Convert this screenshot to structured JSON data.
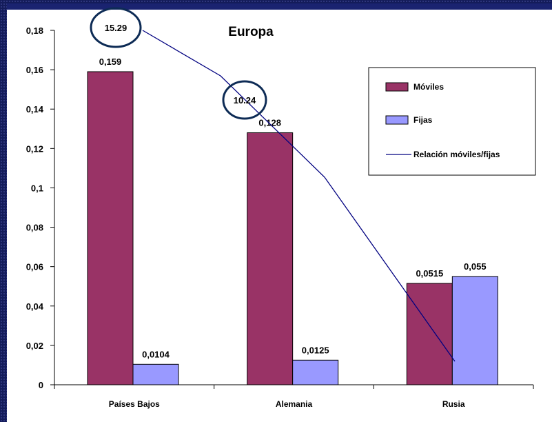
{
  "chart_data": {
    "type": "bar",
    "title": "Europa",
    "categories": [
      "Países Bajos",
      "Alemania",
      "Rusia"
    ],
    "series": [
      {
        "name": "Móviles",
        "values": [
          0.159,
          0.128,
          0.0515
        ],
        "labels": [
          "0,159",
          "0,128",
          "0,0515"
        ],
        "color": "#993366"
      },
      {
        "name": "Fijas",
        "values": [
          0.0104,
          0.0125,
          0.055
        ],
        "labels": [
          "0,0104",
          "0,0125",
          "0,055"
        ],
        "color": "#9999ff"
      }
    ],
    "line_series": {
      "name": "Relación móviles/fijas",
      "color": "#000080",
      "annotations": [
        "15.29",
        "10.24"
      ]
    },
    "ylim": [
      0,
      0.18
    ],
    "yticks": [
      0,
      0.02,
      0.04,
      0.06,
      0.08,
      0.1,
      0.12,
      0.14,
      0.16,
      0.18
    ],
    "ytick_labels": [
      "0",
      "0,02",
      "0,04",
      "0,06",
      "0,08",
      "0,1",
      "0,12",
      "0,14",
      "0,16",
      "0,18"
    ],
    "legend_position": "top-right",
    "grid": false
  }
}
